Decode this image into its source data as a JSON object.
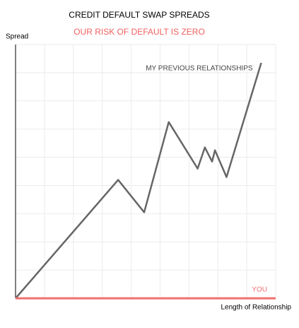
{
  "chart_data": {
    "type": "line",
    "title": "CREDIT DEFAULT SWAP SPREADS",
    "subtitle": "OUR RISK OF DEFAULT IS ZERO",
    "y_label": "Spread",
    "x_label": "Length of Relationship",
    "xlim": [
      0,
      9
    ],
    "ylim": [
      0,
      9
    ],
    "xticks": [
      0,
      1,
      2,
      3,
      4,
      5,
      6,
      7,
      8,
      9
    ],
    "yticks": [
      0,
      1,
      2,
      3,
      4,
      5,
      6,
      7,
      8,
      9
    ],
    "grid": true,
    "series": [
      {
        "name": "MY PREVIOUS RELATIONSHIPS",
        "color": "#666666",
        "x": [
          0,
          3.55,
          4.45,
          5.3,
          6.3,
          6.55,
          6.8,
          6.9,
          7.3,
          8.5
        ],
        "values": [
          0,
          4.2,
          3.05,
          6.25,
          4.6,
          5.35,
          4.85,
          5.25,
          4.3,
          8.35
        ]
      },
      {
        "name": "YOU",
        "color": "#f07070",
        "x": [
          0,
          9
        ],
        "values": [
          0,
          0
        ]
      }
    ]
  }
}
